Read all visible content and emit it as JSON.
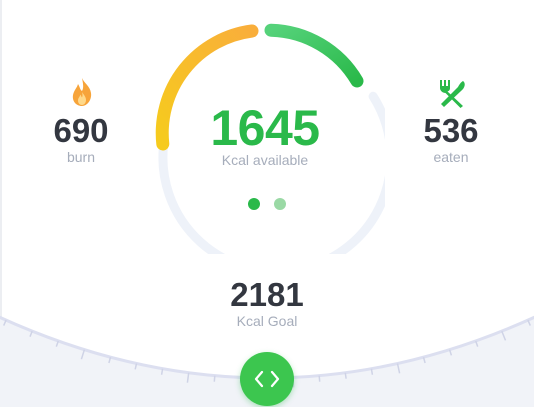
{
  "summary": {
    "available_value": "1645",
    "available_label": "Kcal available",
    "burn_value": "690",
    "burn_label": "burn",
    "eaten_value": "536",
    "eaten_label": "eaten",
    "goal_value": "2181",
    "goal_label": "Kcal Goal"
  },
  "gauge": {
    "progress_segments": 2,
    "colors": {
      "track": "#eef2f9",
      "orange": "#f9ae3b",
      "yellow": "#f6cb1d",
      "green_light": "#4ccf74",
      "green": "#2ab94a"
    }
  },
  "pager": {
    "pages": 2,
    "active_page": 1
  },
  "icons": {
    "burn": "flame-icon",
    "eaten": "fork-knife-icon",
    "slider": "chevron-left-right-icon"
  }
}
